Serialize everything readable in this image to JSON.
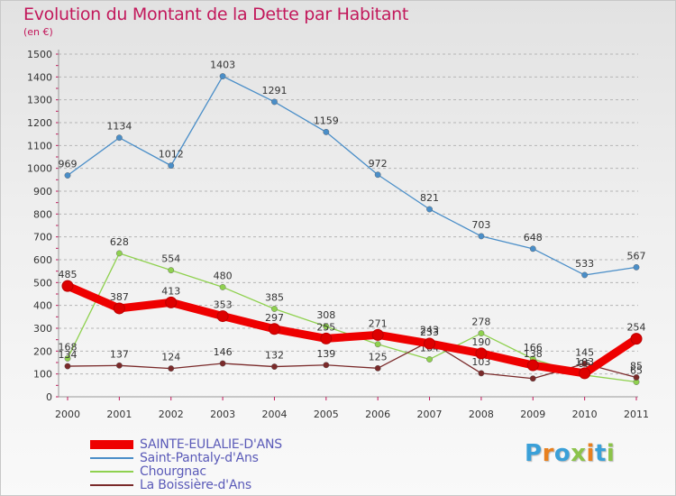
{
  "title": "Evolution du Montant de la Dette par Habitant",
  "subtitle": "(en €)",
  "logo": {
    "text": "Proxiti",
    "colors": [
      "#3aa0d8",
      "#e8801e",
      "#3aa0d8",
      "#8bc34a",
      "#e8801e",
      "#3aa0d8",
      "#8bc34a"
    ]
  },
  "chart_data": {
    "type": "line",
    "x": [
      "2000",
      "2001",
      "2002",
      "2003",
      "2004",
      "2005",
      "2006",
      "2007",
      "2008",
      "2009",
      "2010",
      "2011"
    ],
    "y_ticks": [
      "0",
      "100",
      "200",
      "300",
      "400",
      "500",
      "600",
      "700",
      "800",
      "900",
      "1000",
      "1100",
      "1200",
      "1300",
      "1400",
      "1500"
    ],
    "ylim": [
      0,
      1500
    ],
    "grid": "horizontal dashed",
    "legend_position": "bottom-left",
    "series": [
      {
        "name": "Saint-Pantaly-d'Ans",
        "color": "#4a8ec8",
        "values": [
          969,
          1134,
          1012,
          1403,
          1291,
          1159,
          972,
          821,
          703,
          648,
          533,
          567
        ]
      },
      {
        "name": "Chourgnac",
        "color": "#8fd14f",
        "values": [
          168,
          628,
          554,
          480,
          385,
          308,
          230,
          164,
          278,
          166,
          95,
          65
        ]
      },
      {
        "name": "La Boissière-d'Ans",
        "color": "#7a2a2a",
        "values": [
          134,
          137,
          124,
          146,
          132,
          139,
          125,
          243,
          103,
          80,
          145,
          85
        ]
      },
      {
        "name": "SAINTE-EULALIE-D'ANS",
        "color": "#ee0000",
        "values": [
          485,
          387,
          413,
          353,
          297,
          255,
          271,
          233,
          190,
          138,
          103,
          254
        ]
      }
    ],
    "data_labels": [
      [
        "969",
        "1134",
        "1012",
        "1403",
        "1291",
        "1159",
        "972",
        "821",
        "703",
        "648",
        "533",
        "567"
      ],
      [
        "168",
        "628",
        "554",
        "480",
        "385",
        "308",
        "",
        "164",
        "278",
        "166",
        "95",
        "65"
      ],
      [
        "134",
        "137",
        "124",
        "146",
        "132",
        "139",
        "125",
        "243",
        "103",
        "",
        "145",
        "85"
      ],
      [
        "485",
        "387",
        "413",
        "353",
        "297",
        "255",
        "271",
        "233",
        "190",
        "138",
        "103",
        "254"
      ]
    ],
    "legend_order": [
      3,
      0,
      1,
      2
    ]
  }
}
